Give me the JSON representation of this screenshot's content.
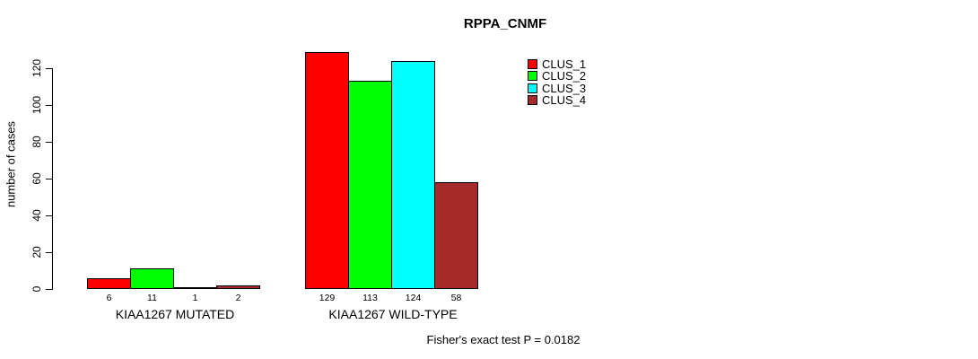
{
  "chart_data": {
    "type": "bar",
    "title": "RPPA_CNMF",
    "ylabel": "number of cases",
    "xlabel": "",
    "yticks": [
      0,
      20,
      40,
      60,
      80,
      100,
      120
    ],
    "ylim": [
      0,
      130
    ],
    "grid": false,
    "legend_position": "top-right-outside",
    "categories": [
      "KIAA1267 MUTATED",
      "KIAA1267 WILD-TYPE"
    ],
    "series": [
      {
        "name": "CLUS_1",
        "color": "#FF0000",
        "values": [
          6,
          129
        ]
      },
      {
        "name": "CLUS_2",
        "color": "#00FF00",
        "values": [
          11,
          113
        ]
      },
      {
        "name": "CLUS_3",
        "color": "#00FFFF",
        "values": [
          1,
          124
        ]
      },
      {
        "name": "CLUS_4",
        "color": "#A52A2A",
        "values": [
          2,
          58
        ]
      }
    ],
    "bar_value_labels": {
      "KIAA1267 MUTATED": [
        6,
        11,
        1,
        2
      ],
      "KIAA1267 WILD-TYPE": [
        129,
        113,
        124,
        58
      ]
    },
    "footer": "Fisher's exact test P = 0.0182",
    "axis_color": "#000000",
    "bar_border_color": "#000000"
  }
}
